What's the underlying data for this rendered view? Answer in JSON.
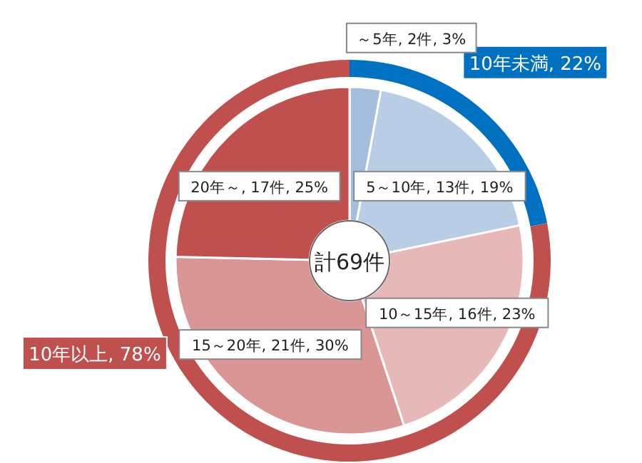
{
  "chart_data": [
    {
      "type": "donut",
      "categories": [
        "～5年",
        "5～10年",
        "10～15年",
        "15～20年",
        "20年～"
      ],
      "values": [
        2,
        13,
        16,
        21,
        17
      ],
      "colors": [
        "#a6bedd",
        "#b9cde5",
        "#e6b9b8",
        "#d99694",
        "#c0504d"
      ],
      "value_labels": [
        "2件, 3%",
        "13件, 19%",
        "16件, 23%",
        "21件, 30%",
        "17件, 25%"
      ],
      "annotations": [
        "計69件"
      ]
    },
    {
      "type": "donut",
      "categories": [
        "10年未満",
        "10年以上"
      ],
      "values": [
        22,
        78
      ],
      "colors": [
        "#0070c0",
        "#c0504d"
      ],
      "value_labels": [
        "22%",
        "78%"
      ]
    }
  ]
}
